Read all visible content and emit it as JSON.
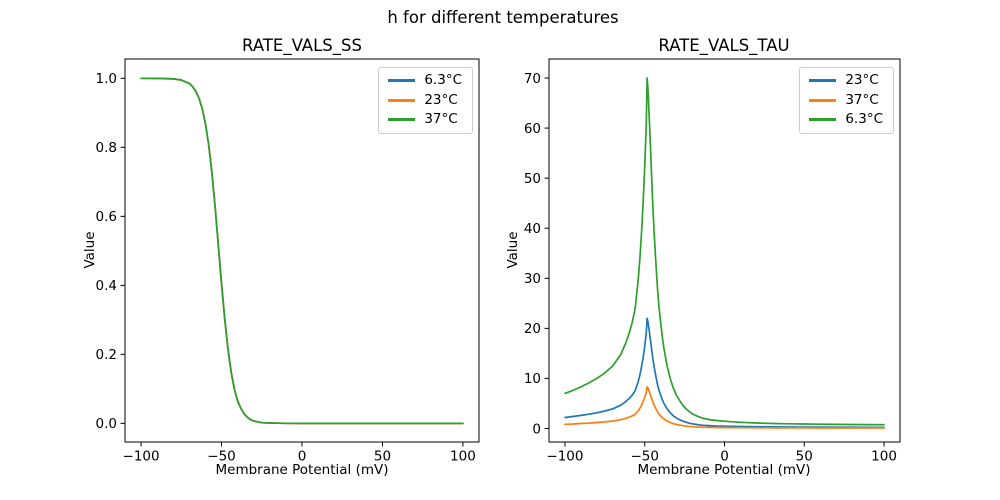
{
  "figure": {
    "suptitle": "h for different temperatures",
    "background": "#ffffff"
  },
  "chart_data": [
    {
      "type": "line",
      "title": "RATE_VALS_SS",
      "xlabel": "Membrane Potential (mV)",
      "ylabel": "Value",
      "xlim": [
        -110,
        110
      ],
      "ylim": [
        -0.054,
        1.056
      ],
      "grid": false,
      "legend_position": "upper right",
      "xticks": {
        "values": [
          -100,
          -50,
          0,
          50,
          100
        ],
        "labels": [
          "−100",
          "−50",
          "0",
          "50",
          "100"
        ]
      },
      "yticks": {
        "values": [
          0.0,
          0.2,
          0.4,
          0.6,
          0.8,
          1.0
        ],
        "labels": [
          "0.0",
          "0.2",
          "0.4",
          "0.6",
          "0.8",
          "1.0"
        ]
      },
      "legend": [
        {
          "label": "6.3°C",
          "color": "#1f77b4"
        },
        {
          "label": "23°C",
          "color": "#ff7f0e"
        },
        {
          "label": "37°C",
          "color": "#2ca02c"
        }
      ],
      "shared_points": [
        [
          -100,
          1.0
        ],
        [
          -90,
          0.9998
        ],
        [
          -80,
          0.9984
        ],
        [
          -75,
          0.995
        ],
        [
          -70,
          0.985
        ],
        [
          -68,
          0.976
        ],
        [
          -66,
          0.962
        ],
        [
          -64,
          0.942
        ],
        [
          -62,
          0.912
        ],
        [
          -60,
          0.868
        ],
        [
          -58,
          0.807
        ],
        [
          -56,
          0.727
        ],
        [
          -54,
          0.628
        ],
        [
          -52,
          0.517
        ],
        [
          -50,
          0.405
        ],
        [
          -48,
          0.301
        ],
        [
          -46,
          0.215
        ],
        [
          -44,
          0.148
        ],
        [
          -42,
          0.099
        ],
        [
          -40,
          0.065
        ],
        [
          -38,
          0.043
        ],
        [
          -36,
          0.028
        ],
        [
          -34,
          0.018
        ],
        [
          -32,
          0.011
        ],
        [
          -30,
          0.007
        ],
        [
          -25,
          0.002
        ],
        [
          -20,
          0.001
        ],
        [
          -15,
          0.0004
        ],
        [
          -10,
          0.0001
        ],
        [
          0,
          0
        ],
        [
          20,
          0
        ],
        [
          40,
          0
        ],
        [
          60,
          0
        ],
        [
          80,
          0
        ],
        [
          100,
          0
        ]
      ],
      "series": [
        {
          "name": "6.3°C",
          "color": "#1f77b4",
          "points": "shared"
        },
        {
          "name": "23°C",
          "color": "#ff7f0e",
          "points": "shared"
        },
        {
          "name": "37°C",
          "color": "#2ca02c",
          "points": "shared"
        }
      ]
    },
    {
      "type": "line",
      "title": "RATE_VALS_TAU",
      "xlabel": "Membrane Potential (mV)",
      "ylabel": "Value",
      "xlim": [
        -110,
        110
      ],
      "ylim": [
        -2.7,
        73.8
      ],
      "grid": false,
      "legend_position": "upper right",
      "xticks": {
        "values": [
          -100,
          -50,
          0,
          50,
          100
        ],
        "labels": [
          "−100",
          "−50",
          "0",
          "50",
          "100"
        ]
      },
      "yticks": {
        "values": [
          0,
          10,
          20,
          30,
          40,
          50,
          60,
          70
        ],
        "labels": [
          "0",
          "10",
          "20",
          "30",
          "40",
          "50",
          "60",
          "70"
        ]
      },
      "legend": [
        {
          "label": "23°C",
          "color": "#1f77b4"
        },
        {
          "label": "37°C",
          "color": "#ff7f0e"
        },
        {
          "label": "6.3°C",
          "color": "#2ca02c"
        }
      ],
      "series": [
        {
          "name": "23°C",
          "color": "#1f77b4",
          "points": [
            [
              -100,
              2.2
            ],
            [
              -95,
              2.39
            ],
            [
              -90,
              2.61
            ],
            [
              -85,
              2.86
            ],
            [
              -80,
              3.14
            ],
            [
              -75,
              3.49
            ],
            [
              -70,
              3.93
            ],
            [
              -65,
              4.65
            ],
            [
              -62,
              5.35
            ],
            [
              -60,
              5.91
            ],
            [
              -58,
              6.6
            ],
            [
              -56,
              7.55
            ],
            [
              -54,
              9.43
            ],
            [
              -53,
              10.69
            ],
            [
              -52,
              12.26
            ],
            [
              -51,
              14.15
            ],
            [
              -50,
              16.35
            ],
            [
              -49,
              19.18
            ],
            [
              -48.5,
              22.0
            ],
            [
              -48,
              21.38
            ],
            [
              -47,
              19.18
            ],
            [
              -46,
              16.67
            ],
            [
              -45,
              14.15
            ],
            [
              -44,
              12.11
            ],
            [
              -43,
              10.38
            ],
            [
              -42,
              8.81
            ],
            [
              -41,
              7.55
            ],
            [
              -40,
              6.6
            ],
            [
              -39,
              5.75
            ],
            [
              -38,
              5.03
            ],
            [
              -36,
              3.93
            ],
            [
              -34,
              3.11
            ],
            [
              -32,
              2.52
            ],
            [
              -30,
              2.08
            ],
            [
              -28,
              1.73
            ],
            [
              -26,
              1.45
            ],
            [
              -24,
              1.23
            ],
            [
              -22,
              1.05
            ],
            [
              -20,
              0.91
            ],
            [
              -17,
              0.77
            ],
            [
              -14,
              0.66
            ],
            [
              -10,
              0.57
            ],
            [
              -5,
              0.5
            ],
            [
              0,
              0.46
            ],
            [
              5,
              0.42
            ],
            [
              10,
              0.39
            ],
            [
              20,
              0.35
            ],
            [
              30,
              0.31
            ],
            [
              40,
              0.3
            ],
            [
              50,
              0.28
            ],
            [
              60,
              0.27
            ],
            [
              70,
              0.26
            ],
            [
              80,
              0.25
            ],
            [
              90,
              0.24
            ],
            [
              100,
              0.24
            ]
          ]
        },
        {
          "name": "37°C",
          "color": "#ff7f0e",
          "points": [
            [
              -100,
              0.83
            ],
            [
              -95,
              0.9
            ],
            [
              -90,
              0.99
            ],
            [
              -85,
              1.08
            ],
            [
              -80,
              1.19
            ],
            [
              -75,
              1.32
            ],
            [
              -70,
              1.49
            ],
            [
              -65,
              1.76
            ],
            [
              -62,
              2.02
            ],
            [
              -60,
              2.24
            ],
            [
              -58,
              2.5
            ],
            [
              -56,
              2.86
            ],
            [
              -54,
              3.57
            ],
            [
              -53,
              4.05
            ],
            [
              -52,
              4.64
            ],
            [
              -51,
              5.36
            ],
            [
              -50,
              6.19
            ],
            [
              -49,
              7.26
            ],
            [
              -48.5,
              8.33
            ],
            [
              -48,
              8.1
            ],
            [
              -47,
              7.26
            ],
            [
              -46,
              6.31
            ],
            [
              -45,
              5.36
            ],
            [
              -44,
              4.58
            ],
            [
              -43,
              3.93
            ],
            [
              -42,
              3.33
            ],
            [
              -41,
              2.86
            ],
            [
              -40,
              2.5
            ],
            [
              -39,
              2.18
            ],
            [
              -38,
              1.9
            ],
            [
              -36,
              1.49
            ],
            [
              -34,
              1.18
            ],
            [
              -32,
              0.95
            ],
            [
              -30,
              0.79
            ],
            [
              -28,
              0.65
            ],
            [
              -26,
              0.55
            ],
            [
              -24,
              0.46
            ],
            [
              -22,
              0.4
            ],
            [
              -20,
              0.35
            ],
            [
              -17,
              0.29
            ],
            [
              -14,
              0.25
            ],
            [
              -10,
              0.21
            ],
            [
              -5,
              0.19
            ],
            [
              0,
              0.17
            ],
            [
              5,
              0.16
            ],
            [
              10,
              0.15
            ],
            [
              20,
              0.13
            ],
            [
              30,
              0.12
            ],
            [
              40,
              0.11
            ],
            [
              50,
              0.11
            ],
            [
              60,
              0.1
            ],
            [
              70,
              0.1
            ],
            [
              80,
              0.09
            ],
            [
              90,
              0.09
            ],
            [
              100,
              0.09
            ]
          ]
        },
        {
          "name": "6.3°C",
          "color": "#2ca02c",
          "points": [
            [
              -100,
              7.0
            ],
            [
              -95,
              7.6
            ],
            [
              -90,
              8.3
            ],
            [
              -85,
              9.1
            ],
            [
              -80,
              10.0
            ],
            [
              -75,
              11.1
            ],
            [
              -70,
              12.5
            ],
            [
              -65,
              14.8
            ],
            [
              -62,
              17.0
            ],
            [
              -60,
              18.8
            ],
            [
              -58,
              21.0
            ],
            [
              -56,
              24.0
            ],
            [
              -54,
              30.0
            ],
            [
              -53,
              34.0
            ],
            [
              -52,
              39.0
            ],
            [
              -51,
              45.0
            ],
            [
              -50,
              52.0
            ],
            [
              -49,
              61.0
            ],
            [
              -48.5,
              70.0
            ],
            [
              -48,
              68.0
            ],
            [
              -47,
              61.0
            ],
            [
              -46,
              53.0
            ],
            [
              -45,
              45.0
            ],
            [
              -44,
              38.5
            ],
            [
              -43,
              33.0
            ],
            [
              -42,
              28.0
            ],
            [
              -41,
              24.0
            ],
            [
              -40,
              21.0
            ],
            [
              -39,
              18.3
            ],
            [
              -38,
              16.0
            ],
            [
              -36,
              12.5
            ],
            [
              -34,
              9.9
            ],
            [
              -32,
              8.0
            ],
            [
              -30,
              6.6
            ],
            [
              -28,
              5.5
            ],
            [
              -26,
              4.6
            ],
            [
              -24,
              3.9
            ],
            [
              -22,
              3.35
            ],
            [
              -20,
              2.9
            ],
            [
              -17,
              2.45
            ],
            [
              -14,
              2.1
            ],
            [
              -10,
              1.8
            ],
            [
              -5,
              1.6
            ],
            [
              0,
              1.45
            ],
            [
              5,
              1.33
            ],
            [
              10,
              1.24
            ],
            [
              20,
              1.1
            ],
            [
              30,
              1.0
            ],
            [
              40,
              0.94
            ],
            [
              50,
              0.89
            ],
            [
              60,
              0.85
            ],
            [
              70,
              0.82
            ],
            [
              80,
              0.79
            ],
            [
              90,
              0.77
            ],
            [
              100,
              0.75
            ]
          ]
        }
      ]
    }
  ]
}
